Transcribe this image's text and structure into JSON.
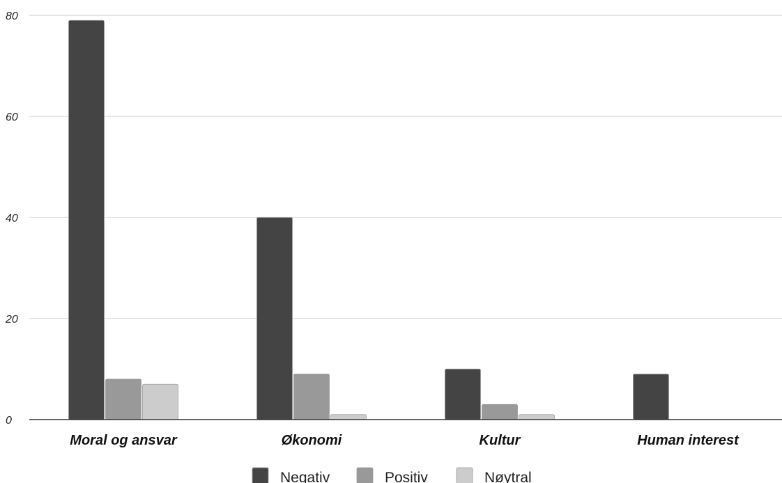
{
  "chart_data": {
    "type": "bar",
    "title": "",
    "xlabel": "",
    "ylabel": "",
    "categories": [
      "Moral og ansvar",
      "Økonomi",
      "Kultur",
      "Human interest"
    ],
    "series": [
      {
        "name": "Negativ",
        "color": "#444444",
        "values": [
          79,
          40,
          10,
          9
        ]
      },
      {
        "name": "Positiv",
        "color": "#999999",
        "values": [
          8,
          9,
          3,
          0
        ]
      },
      {
        "name": "Nøytral",
        "color": "#cccccc",
        "values": [
          7,
          1,
          1,
          0
        ]
      }
    ],
    "ylim": [
      0,
      80
    ],
    "yticks": [
      0,
      20,
      40,
      60,
      80
    ],
    "ytick_labels": [
      "0",
      "20",
      "40",
      "60",
      "80"
    ],
    "grid": true,
    "legend_position": "bottom"
  }
}
